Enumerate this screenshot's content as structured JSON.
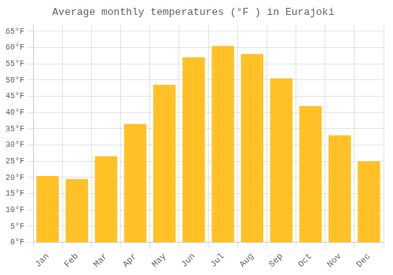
{
  "chart_data": {
    "type": "bar",
    "title": "Average monthly temperatures (°F ) in Eurajoki",
    "categories": [
      "Jan",
      "Feb",
      "Mar",
      "Apr",
      "May",
      "Jun",
      "Jul",
      "Aug",
      "Sep",
      "Oct",
      "Nov",
      "Dec"
    ],
    "values": [
      20.5,
      19.5,
      26.5,
      36.5,
      48.5,
      57.0,
      60.5,
      58.0,
      50.5,
      42.0,
      33.0,
      25.0
    ],
    "color": "#FFC125",
    "ylim": [
      0,
      67
    ],
    "yticks": [
      {
        "value": 0,
        "label": "0°F"
      },
      {
        "value": 5,
        "label": "5°F"
      },
      {
        "value": 10,
        "label": "10°F"
      },
      {
        "value": 15,
        "label": "15°F"
      },
      {
        "value": 20,
        "label": "20°F"
      },
      {
        "value": 25,
        "label": "25°F"
      },
      {
        "value": 30,
        "label": "30°F"
      },
      {
        "value": 35,
        "label": "35°F"
      },
      {
        "value": 40,
        "label": "40°F"
      },
      {
        "value": 45,
        "label": "45°F"
      },
      {
        "value": 50,
        "label": "50°F"
      },
      {
        "value": 55,
        "label": "55°F"
      },
      {
        "value": 60,
        "label": "60°F"
      },
      {
        "value": 65,
        "label": "65°F"
      }
    ],
    "grid": true
  }
}
